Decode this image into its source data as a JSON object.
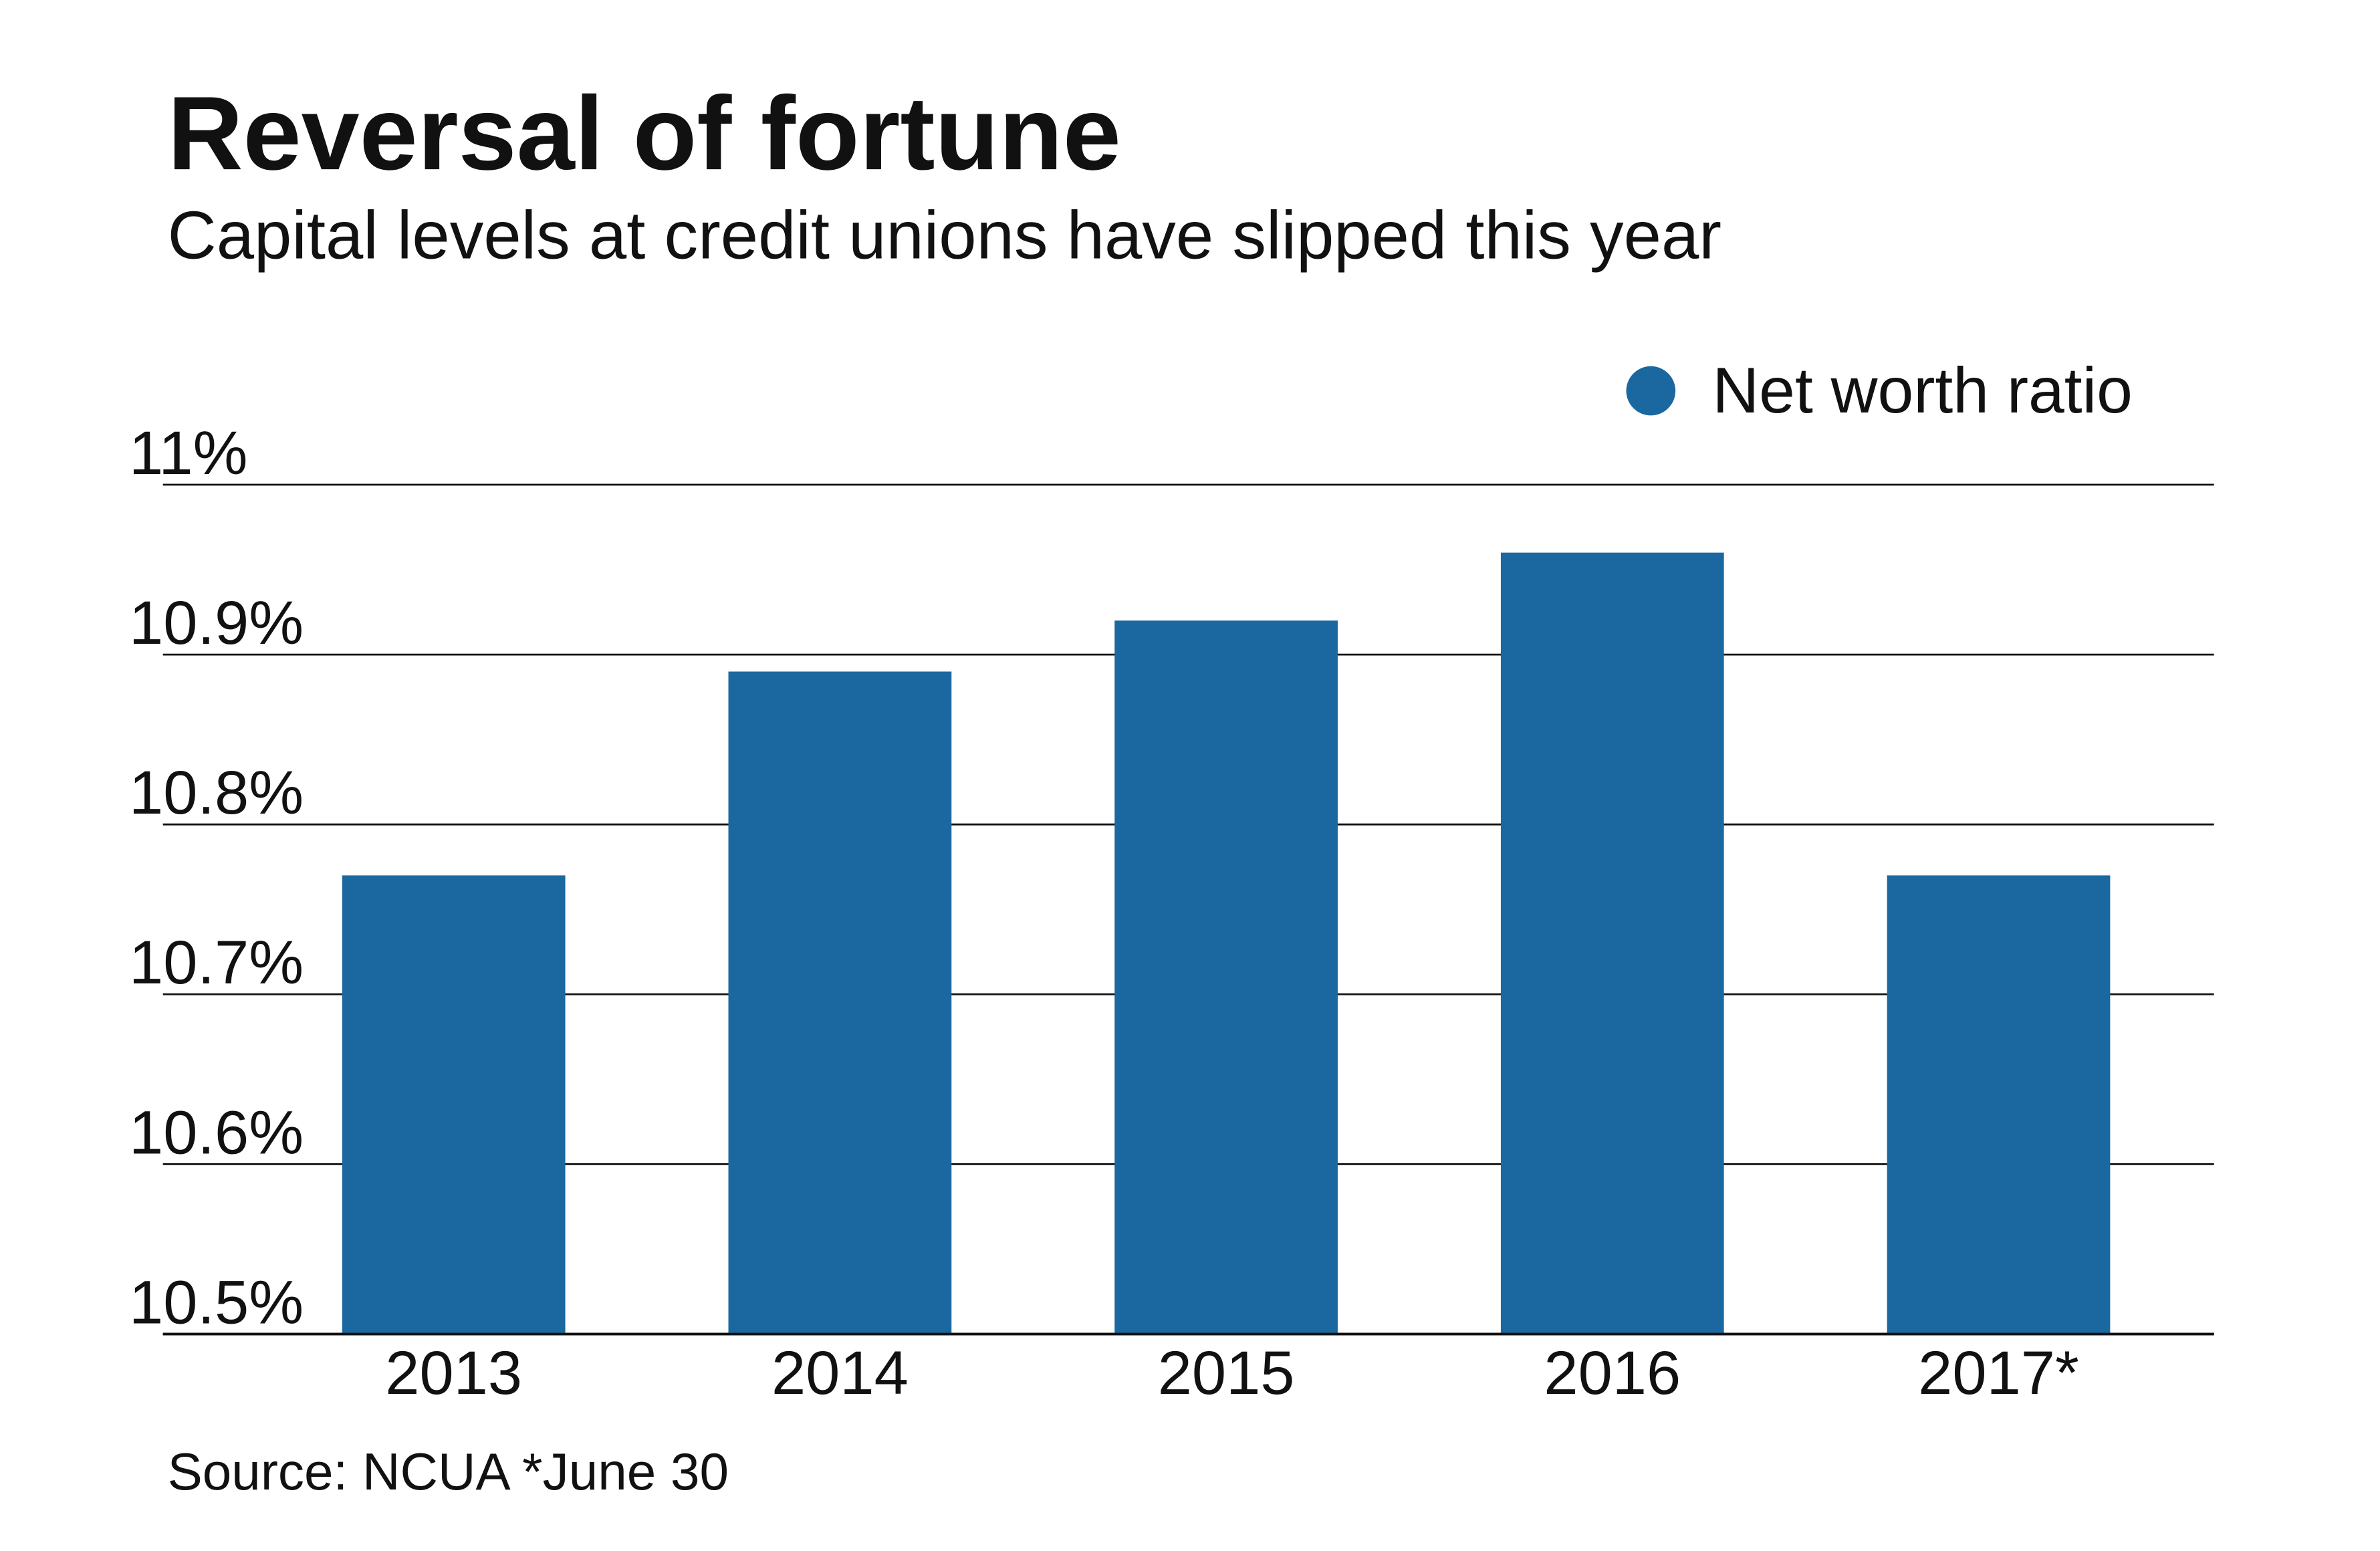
{
  "chart_data": {
    "type": "bar",
    "title": "Reversal of fortune",
    "subtitle": "Capital levels at credit unions have slipped this year",
    "categories": [
      "2013",
      "2014",
      "2015",
      "2016",
      "2017*"
    ],
    "series": [
      {
        "name": "Net worth ratio",
        "values": [
          10.77,
          10.89,
          10.92,
          10.96,
          10.77
        ],
        "color": "#1b68a0"
      }
    ],
    "ylim": [
      10.5,
      11.0
    ],
    "yticks": [
      10.5,
      10.6,
      10.7,
      10.8,
      10.9,
      11.0
    ],
    "ytick_labels": [
      "10.5%",
      "10.6%",
      "10.7%",
      "10.8%",
      "10.9%",
      "11%"
    ],
    "grid": true,
    "legend_position": "top-right",
    "source": "Source: NCUA *June 30"
  }
}
